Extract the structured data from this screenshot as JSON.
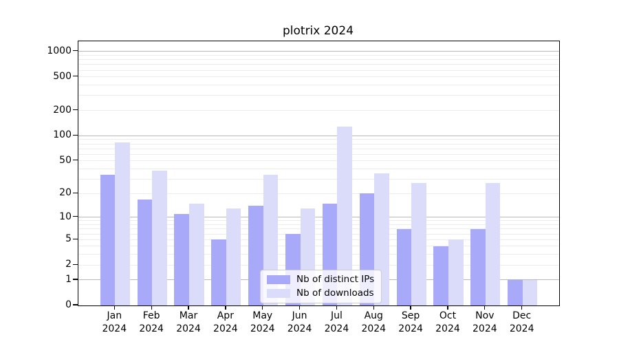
{
  "title": "plotrix 2024",
  "chart_data": {
    "type": "bar",
    "title": "plotrix 2024",
    "categories": [
      "Jan",
      "Feb",
      "Mar",
      "Apr",
      "May",
      "Jun",
      "Jul",
      "Aug",
      "Sep",
      "Oct",
      "Nov",
      "Dec"
    ],
    "year_label": "2024",
    "series": [
      {
        "name": "Nb of distinct IPs",
        "color": "#a9a9fa",
        "values": [
          34,
          17,
          11,
          5,
          14,
          6,
          15,
          20,
          7,
          4,
          7,
          1
        ]
      },
      {
        "name": "Nb of downloads",
        "color": "#dbdbfa",
        "values": [
          83,
          38,
          15,
          13,
          34,
          13,
          129,
          35,
          27,
          5,
          27,
          1
        ]
      }
    ],
    "y_axis": {
      "scale": "log10(value+1)",
      "ticks": [
        0,
        1,
        2,
        5,
        10,
        20,
        50,
        100,
        200,
        500,
        1000
      ],
      "major_gridlines": [
        1,
        10,
        100,
        1000
      ],
      "minor_gridlines": [
        2,
        3,
        4,
        5,
        6,
        7,
        8,
        9,
        20,
        30,
        40,
        50,
        60,
        70,
        80,
        90,
        200,
        300,
        400,
        500,
        600,
        700,
        800,
        900
      ],
      "top_log_value": 3.1202
    },
    "x_axis": {
      "tick_label_line2": "2024"
    },
    "legend_position": "lower-center",
    "grid": true
  },
  "colors": {
    "bar_distinct_ips": "#a9a9fa",
    "bar_downloads": "#dbdbfa",
    "major_gridline": "#b8b8b8",
    "minor_gridline": "#ececec",
    "axis_line": "#000000",
    "background": "#ffffff",
    "legend_border": "#cccccc",
    "legend_background": "rgba(255,255,255,0.8)"
  }
}
